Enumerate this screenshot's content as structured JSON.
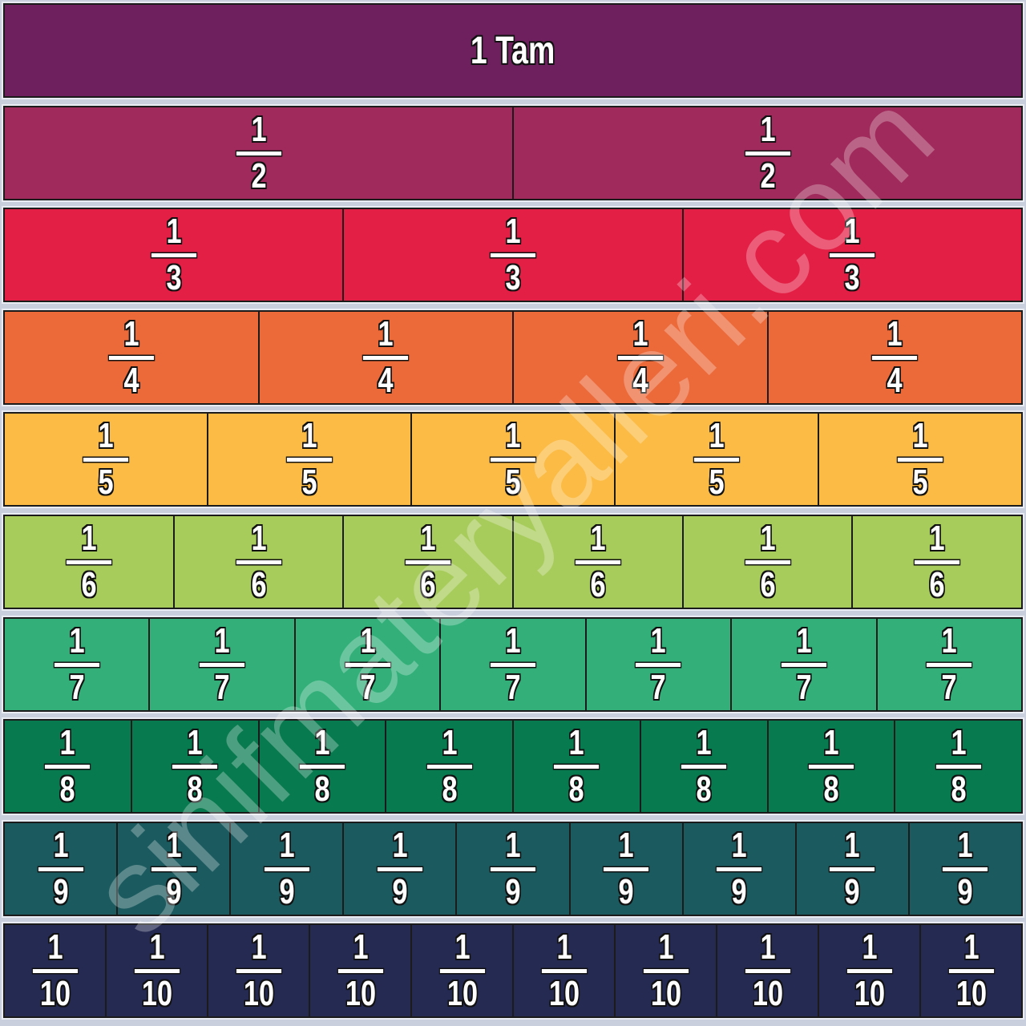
{
  "title": "1 Tam",
  "watermark": "sinifmateryalleri.com",
  "rows": [
    {
      "denominator": 2,
      "numerator_label": "1",
      "denominator_label": "2",
      "color": "#a02a5b"
    },
    {
      "denominator": 3,
      "numerator_label": "1",
      "denominator_label": "3",
      "color": "#e31f45"
    },
    {
      "denominator": 4,
      "numerator_label": "1",
      "denominator_label": "4",
      "color": "#ec6939"
    },
    {
      "denominator": 5,
      "numerator_label": "1",
      "denominator_label": "5",
      "color": "#fbbb45"
    },
    {
      "denominator": 6,
      "numerator_label": "1",
      "denominator_label": "6",
      "color": "#a8cc5c"
    },
    {
      "denominator": 7,
      "numerator_label": "1",
      "denominator_label": "7",
      "color": "#33b07a"
    },
    {
      "denominator": 8,
      "numerator_label": "1",
      "denominator_label": "8",
      "color": "#087a4f"
    },
    {
      "denominator": 9,
      "numerator_label": "1",
      "denominator_label": "9",
      "color": "#1b5a5f"
    },
    {
      "denominator": 10,
      "numerator_label": "1",
      "denominator_label": "10",
      "color": "#252a52"
    }
  ],
  "colors": {
    "whole": "#6d205d",
    "border": "#1b1b1b",
    "text": "#ffffff"
  }
}
